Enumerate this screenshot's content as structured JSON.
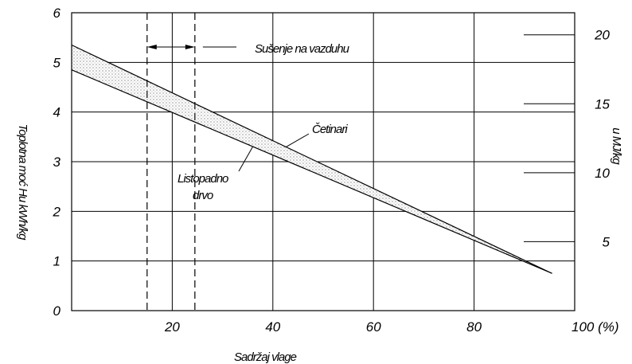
{
  "chart_data": {
    "type": "line",
    "xlabel": "Sadržaj vlage",
    "ylabel_left": "Toplotna moć Hu kWh/kg",
    "ylabel_right": "u MJ/kg",
    "xlim": [
      0,
      100
    ],
    "ylim_left": [
      0,
      6
    ],
    "ylim_right": [
      0,
      21.6
    ],
    "x_ticks": [
      20,
      40,
      60,
      80
    ],
    "x_tick_labels": [
      "20",
      "40",
      "60",
      "80"
    ],
    "x_end_label": "100 (%)",
    "y_left_ticks": [
      0,
      1,
      2,
      3,
      4,
      5,
      6
    ],
    "y_left_tick_labels": [
      "0",
      "1",
      "2",
      "3",
      "4",
      "5",
      "6"
    ],
    "y_right_ticks": [
      5,
      10,
      15,
      20
    ],
    "y_right_tick_labels": [
      "5",
      "10",
      "15",
      "20"
    ],
    "grid": true,
    "series": [
      {
        "name": "Četinari",
        "x": [
          0,
          95.5
        ],
        "y": [
          5.35,
          0.75
        ]
      },
      {
        "name": "Listopadno drvo",
        "x": [
          0,
          95.5
        ],
        "y": [
          4.85,
          0.75
        ]
      }
    ],
    "drying_range": {
      "label": "Sušenje na vazduhu",
      "x": [
        15,
        24.5
      ]
    },
    "annotations": {
      "cetinari": "Četinari",
      "listopadno_line1": "Listopadno",
      "listopadno_line2": "drvo"
    }
  }
}
